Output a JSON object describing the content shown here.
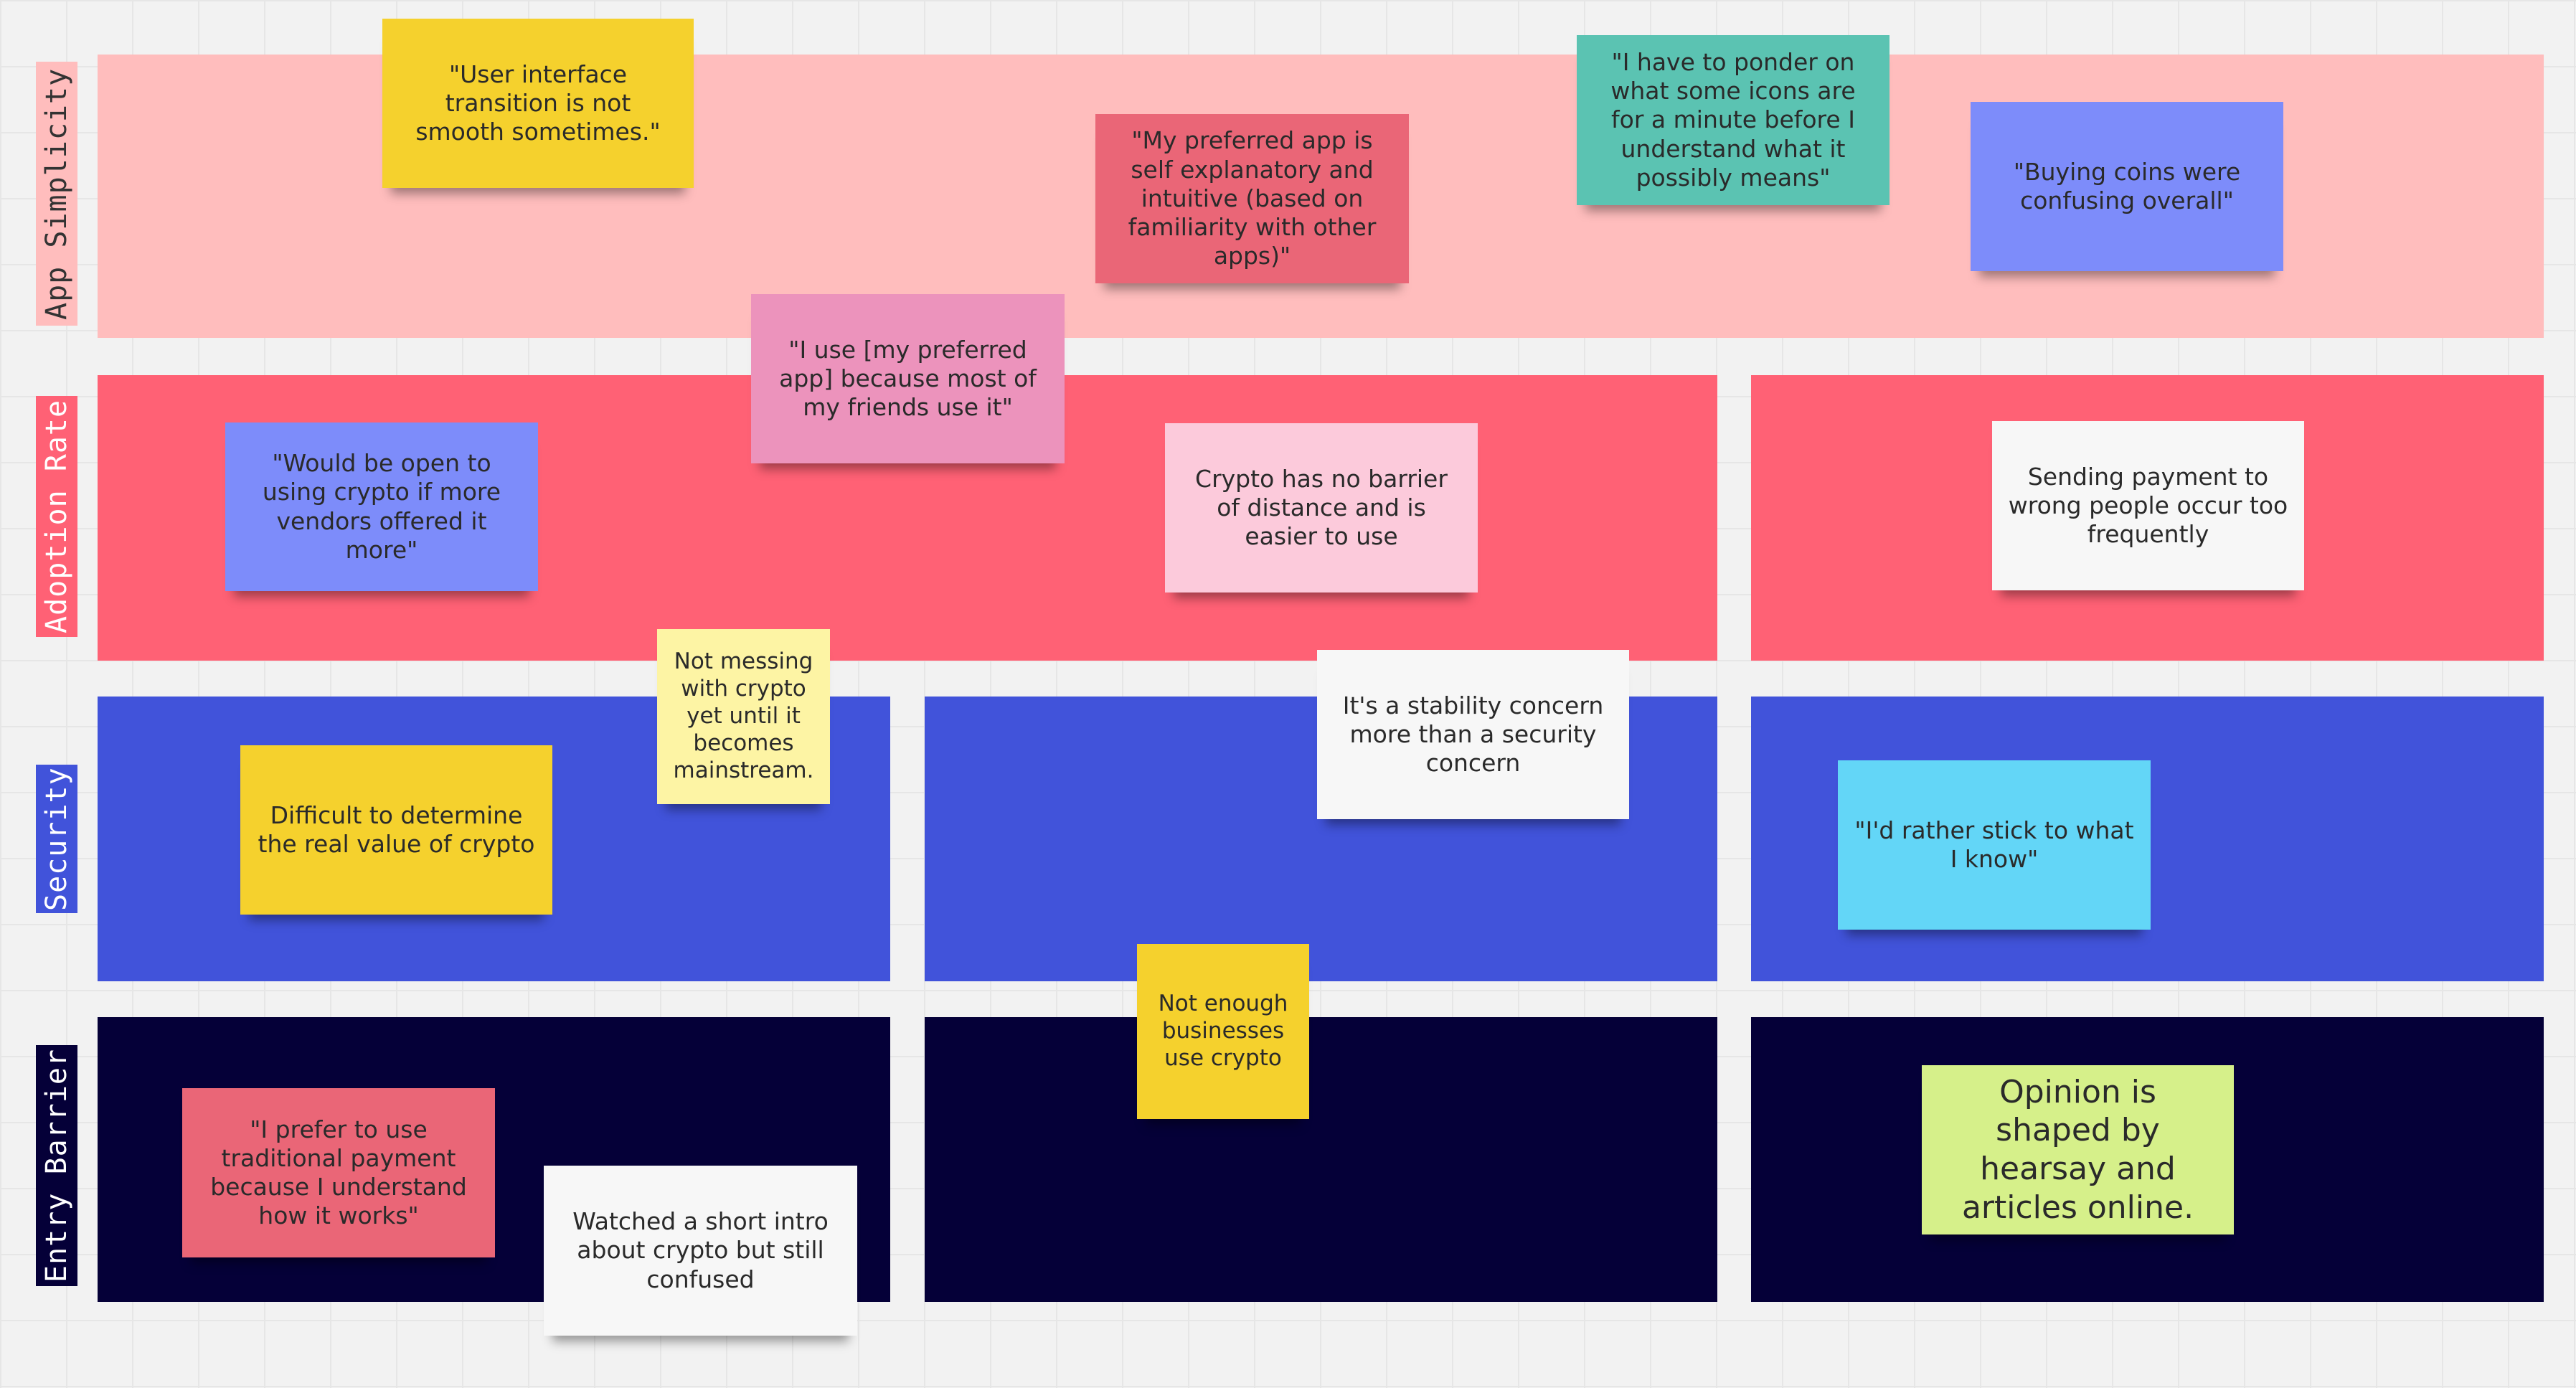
{
  "board": {
    "rows": [
      {
        "id": "app-simplicity",
        "label": "App Simplicity",
        "color": "#ffbdbd",
        "label_color": "#ffbdbd",
        "label_text_color": "#333333"
      },
      {
        "id": "adoption-rate",
        "label": "Adoption Rate",
        "color": "#ff6175",
        "label_color": "#ff6175",
        "label_text_color": "#ffffff"
      },
      {
        "id": "security",
        "label": "Security",
        "color": "#4153da",
        "label_color": "#4153da",
        "label_text_color": "#ffffff"
      },
      {
        "id": "entry-barrier",
        "label": "Entry Barrier",
        "color": "#050038",
        "label_color": "#050038",
        "label_text_color": "#ffffff"
      }
    ],
    "notes": [
      {
        "text": "\"User interface transition is not smooth sometimes.\"",
        "color": "#f5d12d"
      },
      {
        "text": "\"My preferred app is self explanatory and intuitive (based on familiarity with other apps)\"",
        "color": "#ea6677"
      },
      {
        "text": "\"I have to ponder on what some icons are for a minute before I understand what it possibly means\"",
        "color": "#5bc3b2"
      },
      {
        "text": "\"Buying coins were confusing overall\"",
        "color": "#7d8cfa"
      },
      {
        "text": "\"I use [my preferred app] because most of my friends use it\"",
        "color": "#ec93bc"
      },
      {
        "text": "\"Would be open to using crypto if more vendors offered it more\"",
        "color": "#7d8cfa"
      },
      {
        "text": "Crypto has no barrier of distance and is easier to use",
        "color": "#fccadb"
      },
      {
        "text": "Sending payment to wrong people occur too frequently",
        "color": "#f7f7f7"
      },
      {
        "text": "Not messing with crypto yet until it becomes mainstream.",
        "color": "#fdf4a4"
      },
      {
        "text": "It's a stability concern more than a security concern",
        "color": "#f7f7f7"
      },
      {
        "text": "Difficult to determine the real value of crypto",
        "color": "#f5d12d"
      },
      {
        "text": "\"I'd rather stick to what I know\"",
        "color": "#63d6f7"
      },
      {
        "text": "Not enough businesses use crypto",
        "color": "#f5d12d"
      },
      {
        "text": "\"I prefer to use traditional payment because I understand how it works\"",
        "color": "#ea6677"
      },
      {
        "text": "Watched a short intro about crypto but still confused",
        "color": "#f7f7f7"
      },
      {
        "text": "Opinion is shaped by hearsay and articles online.",
        "color": "#d6f08a"
      }
    ]
  }
}
